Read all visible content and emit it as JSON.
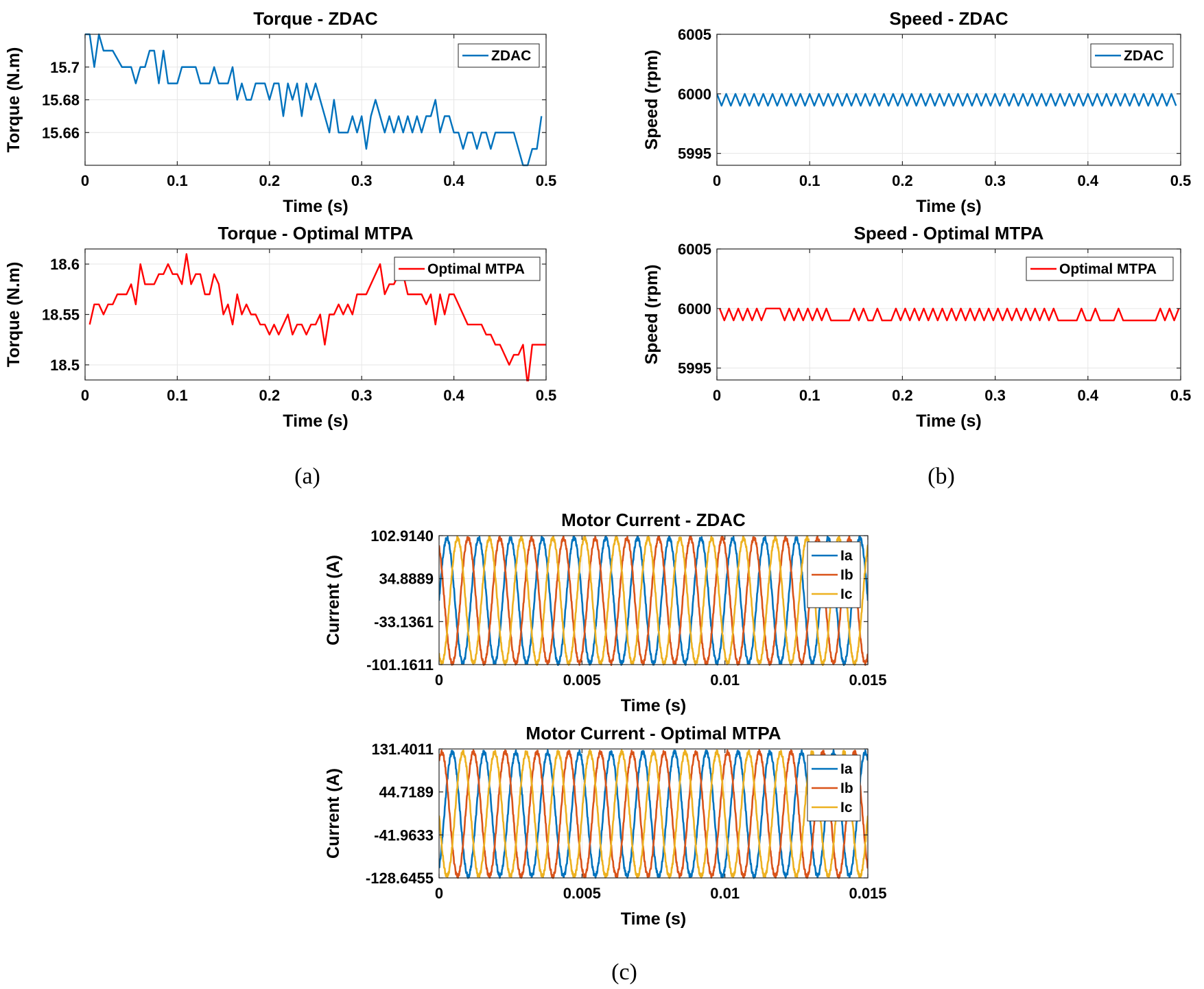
{
  "figure_captions": [
    "(a)",
    "(b)",
    "(c)"
  ],
  "chart_data": [
    {
      "id": "torque-zdac",
      "type": "line",
      "title": "Torque - ZDAC",
      "xlabel": "Time (s)",
      "ylabel": "Torque (N.m)",
      "xlim": [
        0,
        0.5
      ],
      "ylim": [
        15.64,
        15.72
      ],
      "xticks": [
        0,
        0.1,
        0.2,
        0.3,
        0.4,
        0.5
      ],
      "xtick_labels": [
        "0",
        "0.1",
        "0.2",
        "0.3",
        "0.4",
        "0.5"
      ],
      "yticks": [
        15.66,
        15.68,
        15.7
      ],
      "ytick_labels": [
        "15.66",
        "15.68",
        "15.7"
      ],
      "legend_position": "top-right",
      "series": [
        {
          "name": "ZDAC",
          "color": "#0072BD",
          "x": [
            0,
            0.005,
            0.01,
            0.015,
            0.02,
            0.03,
            0.04,
            0.045,
            0.05,
            0.055,
            0.06,
            0.065,
            0.07,
            0.075,
            0.08,
            0.085,
            0.09,
            0.095,
            0.1,
            0.105,
            0.11,
            0.115,
            0.12,
            0.125,
            0.13,
            0.135,
            0.14,
            0.145,
            0.15,
            0.155,
            0.16,
            0.165,
            0.17,
            0.175,
            0.18,
            0.185,
            0.19,
            0.195,
            0.2,
            0.205,
            0.21,
            0.215,
            0.22,
            0.225,
            0.23,
            0.235,
            0.24,
            0.245,
            0.25,
            0.255,
            0.26,
            0.265,
            0.27,
            0.275,
            0.28,
            0.285,
            0.29,
            0.295,
            0.3,
            0.305,
            0.31,
            0.315,
            0.32,
            0.325,
            0.33,
            0.335,
            0.34,
            0.345,
            0.35,
            0.355,
            0.36,
            0.365,
            0.37,
            0.375,
            0.38,
            0.385,
            0.39,
            0.395,
            0.4,
            0.405,
            0.41,
            0.415,
            0.42,
            0.425,
            0.43,
            0.435,
            0.44,
            0.445,
            0.45,
            0.455,
            0.46,
            0.465,
            0.47,
            0.475,
            0.48,
            0.485,
            0.49,
            0.495
          ],
          "values": [
            15.72,
            15.72,
            15.7,
            15.72,
            15.71,
            15.71,
            15.7,
            15.7,
            15.7,
            15.69,
            15.7,
            15.7,
            15.71,
            15.71,
            15.69,
            15.71,
            15.69,
            15.69,
            15.69,
            15.7,
            15.7,
            15.7,
            15.7,
            15.69,
            15.69,
            15.69,
            15.7,
            15.69,
            15.69,
            15.69,
            15.7,
            15.68,
            15.69,
            15.68,
            15.68,
            15.69,
            15.69,
            15.69,
            15.68,
            15.69,
            15.69,
            15.67,
            15.69,
            15.68,
            15.69,
            15.67,
            15.69,
            15.68,
            15.69,
            15.68,
            15.67,
            15.66,
            15.68,
            15.66,
            15.66,
            15.66,
            15.67,
            15.66,
            15.67,
            15.65,
            15.67,
            15.68,
            15.67,
            15.66,
            15.67,
            15.66,
            15.67,
            15.66,
            15.67,
            15.66,
            15.67,
            15.66,
            15.67,
            15.67,
            15.68,
            15.66,
            15.67,
            15.67,
            15.66,
            15.66,
            15.65,
            15.66,
            15.66,
            15.65,
            15.66,
            15.66,
            15.65,
            15.66,
            15.66,
            15.66,
            15.66,
            15.66,
            15.65,
            15.64,
            15.64,
            15.65,
            15.65,
            15.67
          ]
        }
      ]
    },
    {
      "id": "speed-zdac",
      "type": "line",
      "title": "Speed - ZDAC",
      "xlabel": "Time (s)",
      "ylabel": "Speed (rpm)",
      "xlim": [
        0,
        0.5
      ],
      "ylim": [
        5994,
        6005
      ],
      "xticks": [
        0,
        0.1,
        0.2,
        0.3,
        0.4,
        0.5
      ],
      "xtick_labels": [
        "0",
        "0.1",
        "0.2",
        "0.3",
        "0.4",
        "0.5"
      ],
      "yticks": [
        5995,
        6000,
        6005
      ],
      "ytick_labels": [
        "5995",
        "6000",
        "6005"
      ],
      "legend_position": "top-right",
      "series": [
        {
          "name": "ZDAC",
          "color": "#0072BD",
          "pattern": "alternating 6000 / 5999 every 0.005 s",
          "x_start": 0,
          "x_step": 0.005,
          "count": 100,
          "values_cycle": [
            6000,
            5999
          ]
        }
      ]
    },
    {
      "id": "torque-mtpa",
      "type": "line",
      "title": "Torque - Optimal MTPA",
      "xlabel": "Time (s)",
      "ylabel": "Torque (N.m)",
      "xlim": [
        0,
        0.5
      ],
      "ylim": [
        18.485,
        18.615
      ],
      "xticks": [
        0,
        0.1,
        0.2,
        0.3,
        0.4,
        0.5
      ],
      "xtick_labels": [
        "0",
        "0.1",
        "0.2",
        "0.3",
        "0.4",
        "0.5"
      ],
      "yticks": [
        18.5,
        18.55,
        18.6
      ],
      "ytick_labels": [
        "18.5",
        "18.55",
        "18.6"
      ],
      "legend_position": "top-right",
      "series": [
        {
          "name": "Optimal MTPA",
          "color": "#FF0000",
          "x": [
            0.005,
            0.01,
            0.015,
            0.02,
            0.025,
            0.03,
            0.035,
            0.04,
            0.045,
            0.05,
            0.055,
            0.06,
            0.065,
            0.07,
            0.075,
            0.08,
            0.085,
            0.09,
            0.095,
            0.1,
            0.105,
            0.11,
            0.115,
            0.12,
            0.125,
            0.13,
            0.135,
            0.14,
            0.145,
            0.15,
            0.155,
            0.16,
            0.165,
            0.17,
            0.175,
            0.18,
            0.185,
            0.19,
            0.195,
            0.2,
            0.205,
            0.21,
            0.215,
            0.22,
            0.225,
            0.23,
            0.235,
            0.24,
            0.245,
            0.25,
            0.255,
            0.26,
            0.265,
            0.27,
            0.275,
            0.28,
            0.285,
            0.29,
            0.295,
            0.3,
            0.305,
            0.31,
            0.315,
            0.32,
            0.325,
            0.33,
            0.335,
            0.34,
            0.345,
            0.35,
            0.355,
            0.36,
            0.365,
            0.37,
            0.375,
            0.38,
            0.385,
            0.39,
            0.395,
            0.4,
            0.405,
            0.41,
            0.415,
            0.42,
            0.425,
            0.43,
            0.435,
            0.44,
            0.445,
            0.45,
            0.455,
            0.46,
            0.465,
            0.47,
            0.475,
            0.48,
            0.485,
            0.49,
            0.495,
            0.5
          ],
          "values": [
            18.54,
            18.56,
            18.56,
            18.55,
            18.56,
            18.56,
            18.57,
            18.57,
            18.57,
            18.58,
            18.56,
            18.6,
            18.58,
            18.58,
            18.58,
            18.59,
            18.59,
            18.6,
            18.59,
            18.59,
            18.58,
            18.61,
            18.58,
            18.59,
            18.59,
            18.57,
            18.57,
            18.59,
            18.58,
            18.55,
            18.56,
            18.54,
            18.57,
            18.55,
            18.56,
            18.55,
            18.55,
            18.54,
            18.54,
            18.53,
            18.54,
            18.53,
            18.54,
            18.55,
            18.53,
            18.54,
            18.54,
            18.53,
            18.54,
            18.54,
            18.55,
            18.52,
            18.55,
            18.55,
            18.56,
            18.55,
            18.56,
            18.55,
            18.57,
            18.57,
            18.57,
            18.58,
            18.59,
            18.6,
            18.57,
            18.58,
            18.58,
            18.59,
            18.59,
            18.57,
            18.57,
            18.57,
            18.57,
            18.56,
            18.57,
            18.54,
            18.57,
            18.55,
            18.57,
            18.57,
            18.56,
            18.55,
            18.54,
            18.54,
            18.54,
            18.54,
            18.53,
            18.53,
            18.52,
            18.52,
            18.51,
            18.5,
            18.51,
            18.51,
            18.52,
            18.48,
            18.52,
            18.52,
            18.52,
            18.52
          ]
        }
      ]
    },
    {
      "id": "speed-mtpa",
      "type": "line",
      "title": "Speed - Optimal MTPA",
      "xlabel": "Time (s)",
      "ylabel": "Speed (rpm)",
      "xlim": [
        0,
        0.5
      ],
      "ylim": [
        5994,
        6005
      ],
      "xticks": [
        0,
        0.1,
        0.2,
        0.3,
        0.4,
        0.5
      ],
      "xtick_labels": [
        "0",
        "0.1",
        "0.2",
        "0.3",
        "0.4",
        "0.5"
      ],
      "yticks": [
        5995,
        6000,
        6005
      ],
      "ytick_labels": [
        "5995",
        "6000",
        "6005"
      ],
      "legend_position": "top-right",
      "series": [
        {
          "name": "Optimal MTPA",
          "color": "#FF0000",
          "x": [
            0.003,
            0.008,
            0.013,
            0.018,
            0.023,
            0.028,
            0.033,
            0.038,
            0.043,
            0.048,
            0.053,
            0.058,
            0.063,
            0.068,
            0.073,
            0.078,
            0.083,
            0.088,
            0.093,
            0.098,
            0.103,
            0.108,
            0.113,
            0.118,
            0.123,
            0.128,
            0.133,
            0.138,
            0.143,
            0.148,
            0.153,
            0.158,
            0.163,
            0.168,
            0.173,
            0.178,
            0.183,
            0.188,
            0.193,
            0.198,
            0.203,
            0.208,
            0.213,
            0.218,
            0.223,
            0.228,
            0.233,
            0.238,
            0.243,
            0.248,
            0.253,
            0.258,
            0.263,
            0.268,
            0.273,
            0.278,
            0.283,
            0.288,
            0.293,
            0.298,
            0.303,
            0.308,
            0.313,
            0.318,
            0.323,
            0.328,
            0.333,
            0.338,
            0.343,
            0.348,
            0.353,
            0.358,
            0.363,
            0.368,
            0.373,
            0.378,
            0.383,
            0.388,
            0.393,
            0.398,
            0.403,
            0.408,
            0.413,
            0.418,
            0.423,
            0.428,
            0.433,
            0.438,
            0.443,
            0.448,
            0.453,
            0.458,
            0.463,
            0.468,
            0.473,
            0.478,
            0.483,
            0.488,
            0.493,
            0.498
          ],
          "values": [
            6000,
            5999,
            6000,
            5999,
            6000,
            5999,
            6000,
            5999,
            6000,
            5999,
            6000,
            6000,
            6000,
            6000,
            5999,
            6000,
            5999,
            6000,
            5999,
            6000,
            5999,
            6000,
            5999,
            6000,
            5999,
            5999,
            5999,
            5999,
            5999,
            6000,
            5999,
            6000,
            5999,
            5999,
            6000,
            5999,
            5999,
            5999,
            6000,
            5999,
            6000,
            5999,
            6000,
            5999,
            6000,
            5999,
            6000,
            5999,
            6000,
            5999,
            6000,
            5999,
            6000,
            5999,
            6000,
            5999,
            6000,
            5999,
            6000,
            5999,
            6000,
            5999,
            6000,
            5999,
            6000,
            5999,
            6000,
            5999,
            6000,
            5999,
            6000,
            5999,
            6000,
            5999,
            5999,
            5999,
            5999,
            5999,
            6000,
            5999,
            5999,
            6000,
            5999,
            5999,
            5999,
            5999,
            6000,
            5999,
            5999,
            5999,
            5999,
            5999,
            5999,
            5999,
            5999,
            6000,
            5999,
            6000,
            5999,
            6000
          ]
        }
      ]
    },
    {
      "id": "current-zdac",
      "type": "line",
      "title": "Motor Current - ZDAC",
      "xlabel": "Time (s)",
      "ylabel": "Current (A)",
      "xlim": [
        0,
        0.015
      ],
      "ylim": [
        -101.1611,
        102.914
      ],
      "xticks": [
        0,
        0.005,
        0.01,
        0.015
      ],
      "xtick_labels": [
        "0",
        "0.005",
        "0.01",
        "0.015"
      ],
      "yticks": [
        -101.1611,
        -33.1361,
        34.8889,
        102.914
      ],
      "ytick_labels": [
        "-101.1611",
        "-33.1361",
        "34.8889",
        "102.9140"
      ],
      "legend_position": "top-right",
      "waveform": {
        "shape": "three-phase sinusoid with PWM ripple",
        "frequency_hz": 900,
        "amplitude_a": 99,
        "ripple_a": 3
      },
      "series": [
        {
          "name": "Ia",
          "color": "#0072BD",
          "phase_deg": 0
        },
        {
          "name": "Ib",
          "color": "#D95319",
          "phase_deg": 120
        },
        {
          "name": "Ic",
          "color": "#EDB120",
          "phase_deg": 240
        }
      ]
    },
    {
      "id": "current-mtpa",
      "type": "line",
      "title": "Motor Current - Optimal MTPA",
      "xlabel": "Time (s)",
      "ylabel": "Current (A)",
      "xlim": [
        0,
        0.015
      ],
      "ylim": [
        -128.6455,
        131.4011
      ],
      "xticks": [
        0,
        0.005,
        0.01,
        0.015
      ],
      "xtick_labels": [
        "0",
        "0.005",
        "0.01",
        "0.015"
      ],
      "yticks": [
        -128.6455,
        -41.9633,
        44.7189,
        131.4011
      ],
      "ytick_labels": [
        "-128.6455",
        "-41.9633",
        "44.7189",
        "131.4011"
      ],
      "legend_position": "top-right",
      "waveform": {
        "shape": "three-phase sinusoid with PWM ripple",
        "frequency_hz": 900,
        "amplitude_a": 125,
        "ripple_a": 4
      },
      "series": [
        {
          "name": "Ia",
          "color": "#0072BD",
          "phase_deg": -60
        },
        {
          "name": "Ib",
          "color": "#D95319",
          "phase_deg": 60
        },
        {
          "name": "Ic",
          "color": "#EDB120",
          "phase_deg": 180
        }
      ]
    }
  ]
}
